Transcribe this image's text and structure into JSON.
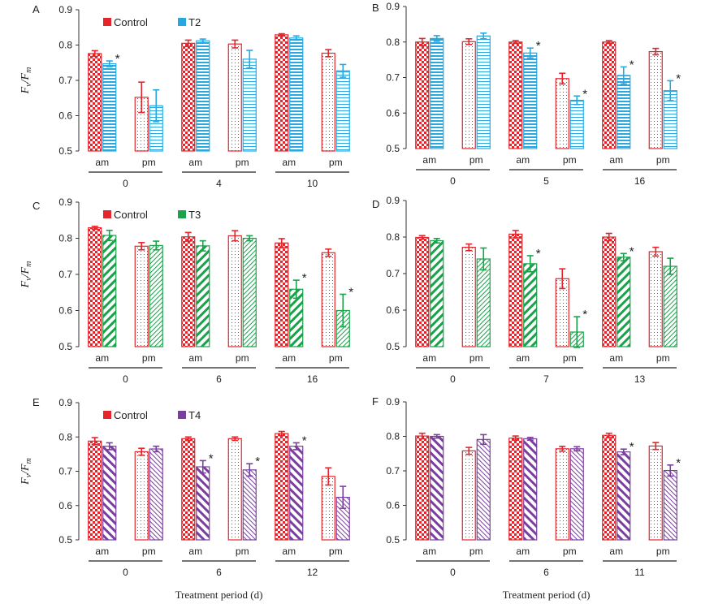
{
  "colors": {
    "control": "#e5242b",
    "T2": "#29a8df",
    "T3": "#1aa24b",
    "T4": "#7a3f9e"
  },
  "chart_data": [
    {
      "panel": "A",
      "type": "bar",
      "ylabel": "Fv/Fm",
      "ylim": [
        0.5,
        0.9
      ],
      "yticks": [
        "0.5",
        "0.6",
        "0.7",
        "0.8",
        "0.9"
      ],
      "categories": [
        "am",
        "pm",
        "am",
        "pm",
        "am",
        "pm"
      ],
      "groups": [
        "0",
        "4",
        "10"
      ],
      "xlabel": "",
      "legend": "top-left",
      "series": [
        {
          "name": "Control",
          "values": [
            0.776,
            0.652,
            0.805,
            0.803,
            0.829,
            0.777
          ],
          "errors": [
            0.008,
            0.043,
            0.009,
            0.011,
            0.003,
            0.01
          ],
          "significant": [
            false,
            false,
            false,
            false,
            false,
            false
          ]
        },
        {
          "name": "T2",
          "values": [
            0.747,
            0.628,
            0.812,
            0.76,
            0.82,
            0.727
          ],
          "errors": [
            0.008,
            0.045,
            0.005,
            0.025,
            0.006,
            0.018
          ],
          "significant": [
            true,
            false,
            false,
            false,
            false,
            false
          ]
        }
      ]
    },
    {
      "panel": "B",
      "type": "bar",
      "ylim": [
        0.5,
        0.9
      ],
      "yticks": [
        "0.5",
        "0.6",
        "0.7",
        "0.8",
        "0.9"
      ],
      "categories": [
        "am",
        "pm",
        "am",
        "pm",
        "am",
        "pm"
      ],
      "groups": [
        "0",
        "5",
        "16"
      ],
      "xlabel": "",
      "series": [
        {
          "name": "Control",
          "values": [
            0.8,
            0.801,
            0.8,
            0.697,
            0.8,
            0.773
          ],
          "errors": [
            0.01,
            0.008,
            0.004,
            0.015,
            0.004,
            0.009
          ],
          "significant": [
            false,
            false,
            false,
            false,
            false,
            false
          ]
        },
        {
          "name": "T2",
          "values": [
            0.81,
            0.817,
            0.769,
            0.636,
            0.706,
            0.663
          ],
          "errors": [
            0.008,
            0.008,
            0.014,
            0.012,
            0.024,
            0.028
          ],
          "significant": [
            false,
            false,
            true,
            true,
            true,
            true
          ]
        }
      ]
    },
    {
      "panel": "C",
      "type": "bar",
      "ylabel": "Fv/Fm",
      "ylim": [
        0.5,
        0.9
      ],
      "yticks": [
        "0.5",
        "0.6",
        "0.7",
        "0.8",
        "0.9"
      ],
      "categories": [
        "am",
        "pm",
        "am",
        "pm",
        "am",
        "pm"
      ],
      "groups": [
        "0",
        "6",
        "16"
      ],
      "xlabel": "",
      "legend": "top-left",
      "series": [
        {
          "name": "Control",
          "values": [
            0.829,
            0.778,
            0.804,
            0.807,
            0.787,
            0.76
          ],
          "errors": [
            0.004,
            0.01,
            0.012,
            0.014,
            0.012,
            0.01
          ],
          "significant": [
            false,
            false,
            false,
            false,
            false,
            false
          ]
        },
        {
          "name": "T3",
          "values": [
            0.808,
            0.78,
            0.779,
            0.8,
            0.659,
            0.6
          ],
          "errors": [
            0.014,
            0.012,
            0.014,
            0.007,
            0.025,
            0.045
          ],
          "significant": [
            false,
            false,
            false,
            false,
            true,
            true
          ]
        }
      ]
    },
    {
      "panel": "D",
      "type": "bar",
      "ylim": [
        0.5,
        0.9
      ],
      "yticks": [
        "0.5",
        "0.6",
        "0.7",
        "0.8",
        "0.9"
      ],
      "categories": [
        "am",
        "pm",
        "am",
        "pm",
        "am",
        "pm"
      ],
      "groups": [
        "0",
        "7",
        "13"
      ],
      "xlabel": "",
      "series": [
        {
          "name": "Control",
          "values": [
            0.799,
            0.772,
            0.808,
            0.686,
            0.8,
            0.76
          ],
          "errors": [
            0.005,
            0.009,
            0.01,
            0.027,
            0.01,
            0.012
          ],
          "significant": [
            false,
            false,
            false,
            false,
            false,
            false
          ]
        },
        {
          "name": "T3",
          "values": [
            0.79,
            0.74,
            0.727,
            0.54,
            0.745,
            0.72
          ],
          "errors": [
            0.006,
            0.03,
            0.022,
            0.042,
            0.01,
            0.022
          ],
          "significant": [
            false,
            false,
            true,
            true,
            true,
            false
          ]
        }
      ]
    },
    {
      "panel": "E",
      "type": "bar",
      "ylabel": "Fv/Fm",
      "ylim": [
        0.5,
        0.9
      ],
      "yticks": [
        "0.5",
        "0.6",
        "0.7",
        "0.8",
        "0.9"
      ],
      "categories": [
        "am",
        "pm",
        "am",
        "pm",
        "am",
        "pm"
      ],
      "groups": [
        "0",
        "6",
        "12"
      ],
      "xlabel": "Treatment period (d)",
      "legend": "top-left",
      "series": [
        {
          "name": "Control",
          "values": [
            0.788,
            0.757,
            0.795,
            0.795,
            0.81,
            0.685
          ],
          "errors": [
            0.01,
            0.01,
            0.005,
            0.005,
            0.006,
            0.025
          ],
          "significant": [
            false,
            false,
            false,
            false,
            false,
            false
          ]
        },
        {
          "name": "T4",
          "values": [
            0.773,
            0.765,
            0.713,
            0.704,
            0.773,
            0.624
          ],
          "errors": [
            0.01,
            0.008,
            0.018,
            0.018,
            0.01,
            0.032
          ],
          "significant": [
            false,
            false,
            true,
            true,
            true,
            false
          ]
        }
      ]
    },
    {
      "panel": "F",
      "type": "bar",
      "ylim": [
        0.5,
        0.9
      ],
      "yticks": [
        "0.5",
        "0.6",
        "0.7",
        "0.8",
        "0.9"
      ],
      "categories": [
        "am",
        "pm",
        "am",
        "pm",
        "am",
        "pm"
      ],
      "groups": [
        "0",
        "6",
        "11"
      ],
      "xlabel": "Treatment period (d)",
      "series": [
        {
          "name": "Control",
          "values": [
            0.801,
            0.758,
            0.795,
            0.764,
            0.803,
            0.772
          ],
          "errors": [
            0.008,
            0.01,
            0.006,
            0.007,
            0.006,
            0.01
          ],
          "significant": [
            false,
            false,
            false,
            false,
            false,
            false
          ]
        },
        {
          "name": "T4",
          "values": [
            0.8,
            0.791,
            0.793,
            0.764,
            0.755,
            0.701
          ],
          "errors": [
            0.005,
            0.014,
            0.004,
            0.006,
            0.008,
            0.016
          ],
          "significant": [
            false,
            false,
            false,
            false,
            true,
            true
          ]
        }
      ]
    }
  ]
}
